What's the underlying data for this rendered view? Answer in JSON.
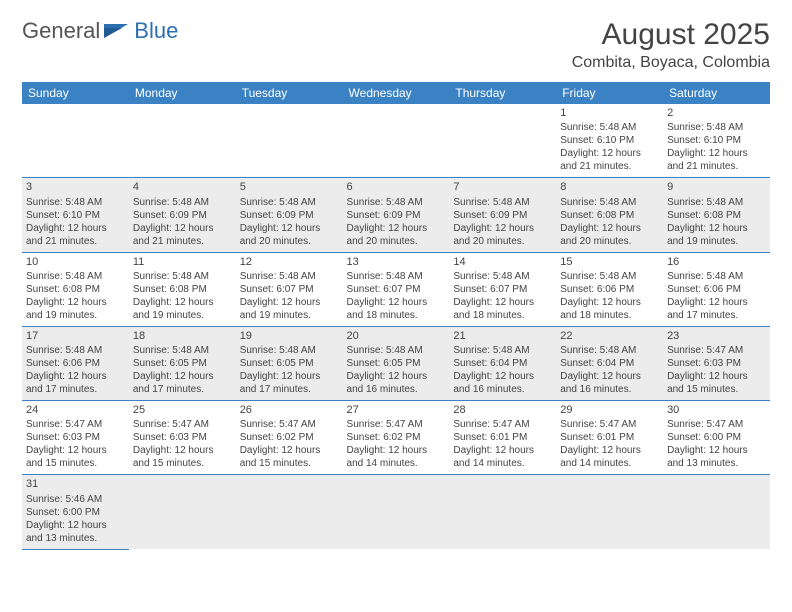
{
  "logo": {
    "part1": "General",
    "part2": "Blue"
  },
  "title": "August 2025",
  "location": "Combita, Boyaca, Colombia",
  "weekdays": [
    "Sunday",
    "Monday",
    "Tuesday",
    "Wednesday",
    "Thursday",
    "Friday",
    "Saturday"
  ],
  "colors": {
    "header_bg": "#3b82c4",
    "shade_bg": "#ececec",
    "border": "#3b82c4",
    "text": "#444444",
    "logo_blue": "#2b6fb0"
  },
  "weeks": [
    {
      "shade": false,
      "days": [
        null,
        null,
        null,
        null,
        null,
        {
          "n": "1",
          "sunrise": "Sunrise: 5:48 AM",
          "sunset": "Sunset: 6:10 PM",
          "daylight": "Daylight: 12 hours and 21 minutes."
        },
        {
          "n": "2",
          "sunrise": "Sunrise: 5:48 AM",
          "sunset": "Sunset: 6:10 PM",
          "daylight": "Daylight: 12 hours and 21 minutes."
        }
      ]
    },
    {
      "shade": true,
      "days": [
        {
          "n": "3",
          "sunrise": "Sunrise: 5:48 AM",
          "sunset": "Sunset: 6:10 PM",
          "daylight": "Daylight: 12 hours and 21 minutes."
        },
        {
          "n": "4",
          "sunrise": "Sunrise: 5:48 AM",
          "sunset": "Sunset: 6:09 PM",
          "daylight": "Daylight: 12 hours and 21 minutes."
        },
        {
          "n": "5",
          "sunrise": "Sunrise: 5:48 AM",
          "sunset": "Sunset: 6:09 PM",
          "daylight": "Daylight: 12 hours and 20 minutes."
        },
        {
          "n": "6",
          "sunrise": "Sunrise: 5:48 AM",
          "sunset": "Sunset: 6:09 PM",
          "daylight": "Daylight: 12 hours and 20 minutes."
        },
        {
          "n": "7",
          "sunrise": "Sunrise: 5:48 AM",
          "sunset": "Sunset: 6:09 PM",
          "daylight": "Daylight: 12 hours and 20 minutes."
        },
        {
          "n": "8",
          "sunrise": "Sunrise: 5:48 AM",
          "sunset": "Sunset: 6:08 PM",
          "daylight": "Daylight: 12 hours and 20 minutes."
        },
        {
          "n": "9",
          "sunrise": "Sunrise: 5:48 AM",
          "sunset": "Sunset: 6:08 PM",
          "daylight": "Daylight: 12 hours and 19 minutes."
        }
      ]
    },
    {
      "shade": false,
      "days": [
        {
          "n": "10",
          "sunrise": "Sunrise: 5:48 AM",
          "sunset": "Sunset: 6:08 PM",
          "daylight": "Daylight: 12 hours and 19 minutes."
        },
        {
          "n": "11",
          "sunrise": "Sunrise: 5:48 AM",
          "sunset": "Sunset: 6:08 PM",
          "daylight": "Daylight: 12 hours and 19 minutes."
        },
        {
          "n": "12",
          "sunrise": "Sunrise: 5:48 AM",
          "sunset": "Sunset: 6:07 PM",
          "daylight": "Daylight: 12 hours and 19 minutes."
        },
        {
          "n": "13",
          "sunrise": "Sunrise: 5:48 AM",
          "sunset": "Sunset: 6:07 PM",
          "daylight": "Daylight: 12 hours and 18 minutes."
        },
        {
          "n": "14",
          "sunrise": "Sunrise: 5:48 AM",
          "sunset": "Sunset: 6:07 PM",
          "daylight": "Daylight: 12 hours and 18 minutes."
        },
        {
          "n": "15",
          "sunrise": "Sunrise: 5:48 AM",
          "sunset": "Sunset: 6:06 PM",
          "daylight": "Daylight: 12 hours and 18 minutes."
        },
        {
          "n": "16",
          "sunrise": "Sunrise: 5:48 AM",
          "sunset": "Sunset: 6:06 PM",
          "daylight": "Daylight: 12 hours and 17 minutes."
        }
      ]
    },
    {
      "shade": true,
      "days": [
        {
          "n": "17",
          "sunrise": "Sunrise: 5:48 AM",
          "sunset": "Sunset: 6:06 PM",
          "daylight": "Daylight: 12 hours and 17 minutes."
        },
        {
          "n": "18",
          "sunrise": "Sunrise: 5:48 AM",
          "sunset": "Sunset: 6:05 PM",
          "daylight": "Daylight: 12 hours and 17 minutes."
        },
        {
          "n": "19",
          "sunrise": "Sunrise: 5:48 AM",
          "sunset": "Sunset: 6:05 PM",
          "daylight": "Daylight: 12 hours and 17 minutes."
        },
        {
          "n": "20",
          "sunrise": "Sunrise: 5:48 AM",
          "sunset": "Sunset: 6:05 PM",
          "daylight": "Daylight: 12 hours and 16 minutes."
        },
        {
          "n": "21",
          "sunrise": "Sunrise: 5:48 AM",
          "sunset": "Sunset: 6:04 PM",
          "daylight": "Daylight: 12 hours and 16 minutes."
        },
        {
          "n": "22",
          "sunrise": "Sunrise: 5:48 AM",
          "sunset": "Sunset: 6:04 PM",
          "daylight": "Daylight: 12 hours and 16 minutes."
        },
        {
          "n": "23",
          "sunrise": "Sunrise: 5:47 AM",
          "sunset": "Sunset: 6:03 PM",
          "daylight": "Daylight: 12 hours and 15 minutes."
        }
      ]
    },
    {
      "shade": false,
      "days": [
        {
          "n": "24",
          "sunrise": "Sunrise: 5:47 AM",
          "sunset": "Sunset: 6:03 PM",
          "daylight": "Daylight: 12 hours and 15 minutes."
        },
        {
          "n": "25",
          "sunrise": "Sunrise: 5:47 AM",
          "sunset": "Sunset: 6:03 PM",
          "daylight": "Daylight: 12 hours and 15 minutes."
        },
        {
          "n": "26",
          "sunrise": "Sunrise: 5:47 AM",
          "sunset": "Sunset: 6:02 PM",
          "daylight": "Daylight: 12 hours and 15 minutes."
        },
        {
          "n": "27",
          "sunrise": "Sunrise: 5:47 AM",
          "sunset": "Sunset: 6:02 PM",
          "daylight": "Daylight: 12 hours and 14 minutes."
        },
        {
          "n": "28",
          "sunrise": "Sunrise: 5:47 AM",
          "sunset": "Sunset: 6:01 PM",
          "daylight": "Daylight: 12 hours and 14 minutes."
        },
        {
          "n": "29",
          "sunrise": "Sunrise: 5:47 AM",
          "sunset": "Sunset: 6:01 PM",
          "daylight": "Daylight: 12 hours and 14 minutes."
        },
        {
          "n": "30",
          "sunrise": "Sunrise: 5:47 AM",
          "sunset": "Sunset: 6:00 PM",
          "daylight": "Daylight: 12 hours and 13 minutes."
        }
      ]
    },
    {
      "shade": true,
      "days": [
        {
          "n": "31",
          "sunrise": "Sunrise: 5:46 AM",
          "sunset": "Sunset: 6:00 PM",
          "daylight": "Daylight: 12 hours and 13 minutes."
        },
        null,
        null,
        null,
        null,
        null,
        null
      ]
    }
  ]
}
